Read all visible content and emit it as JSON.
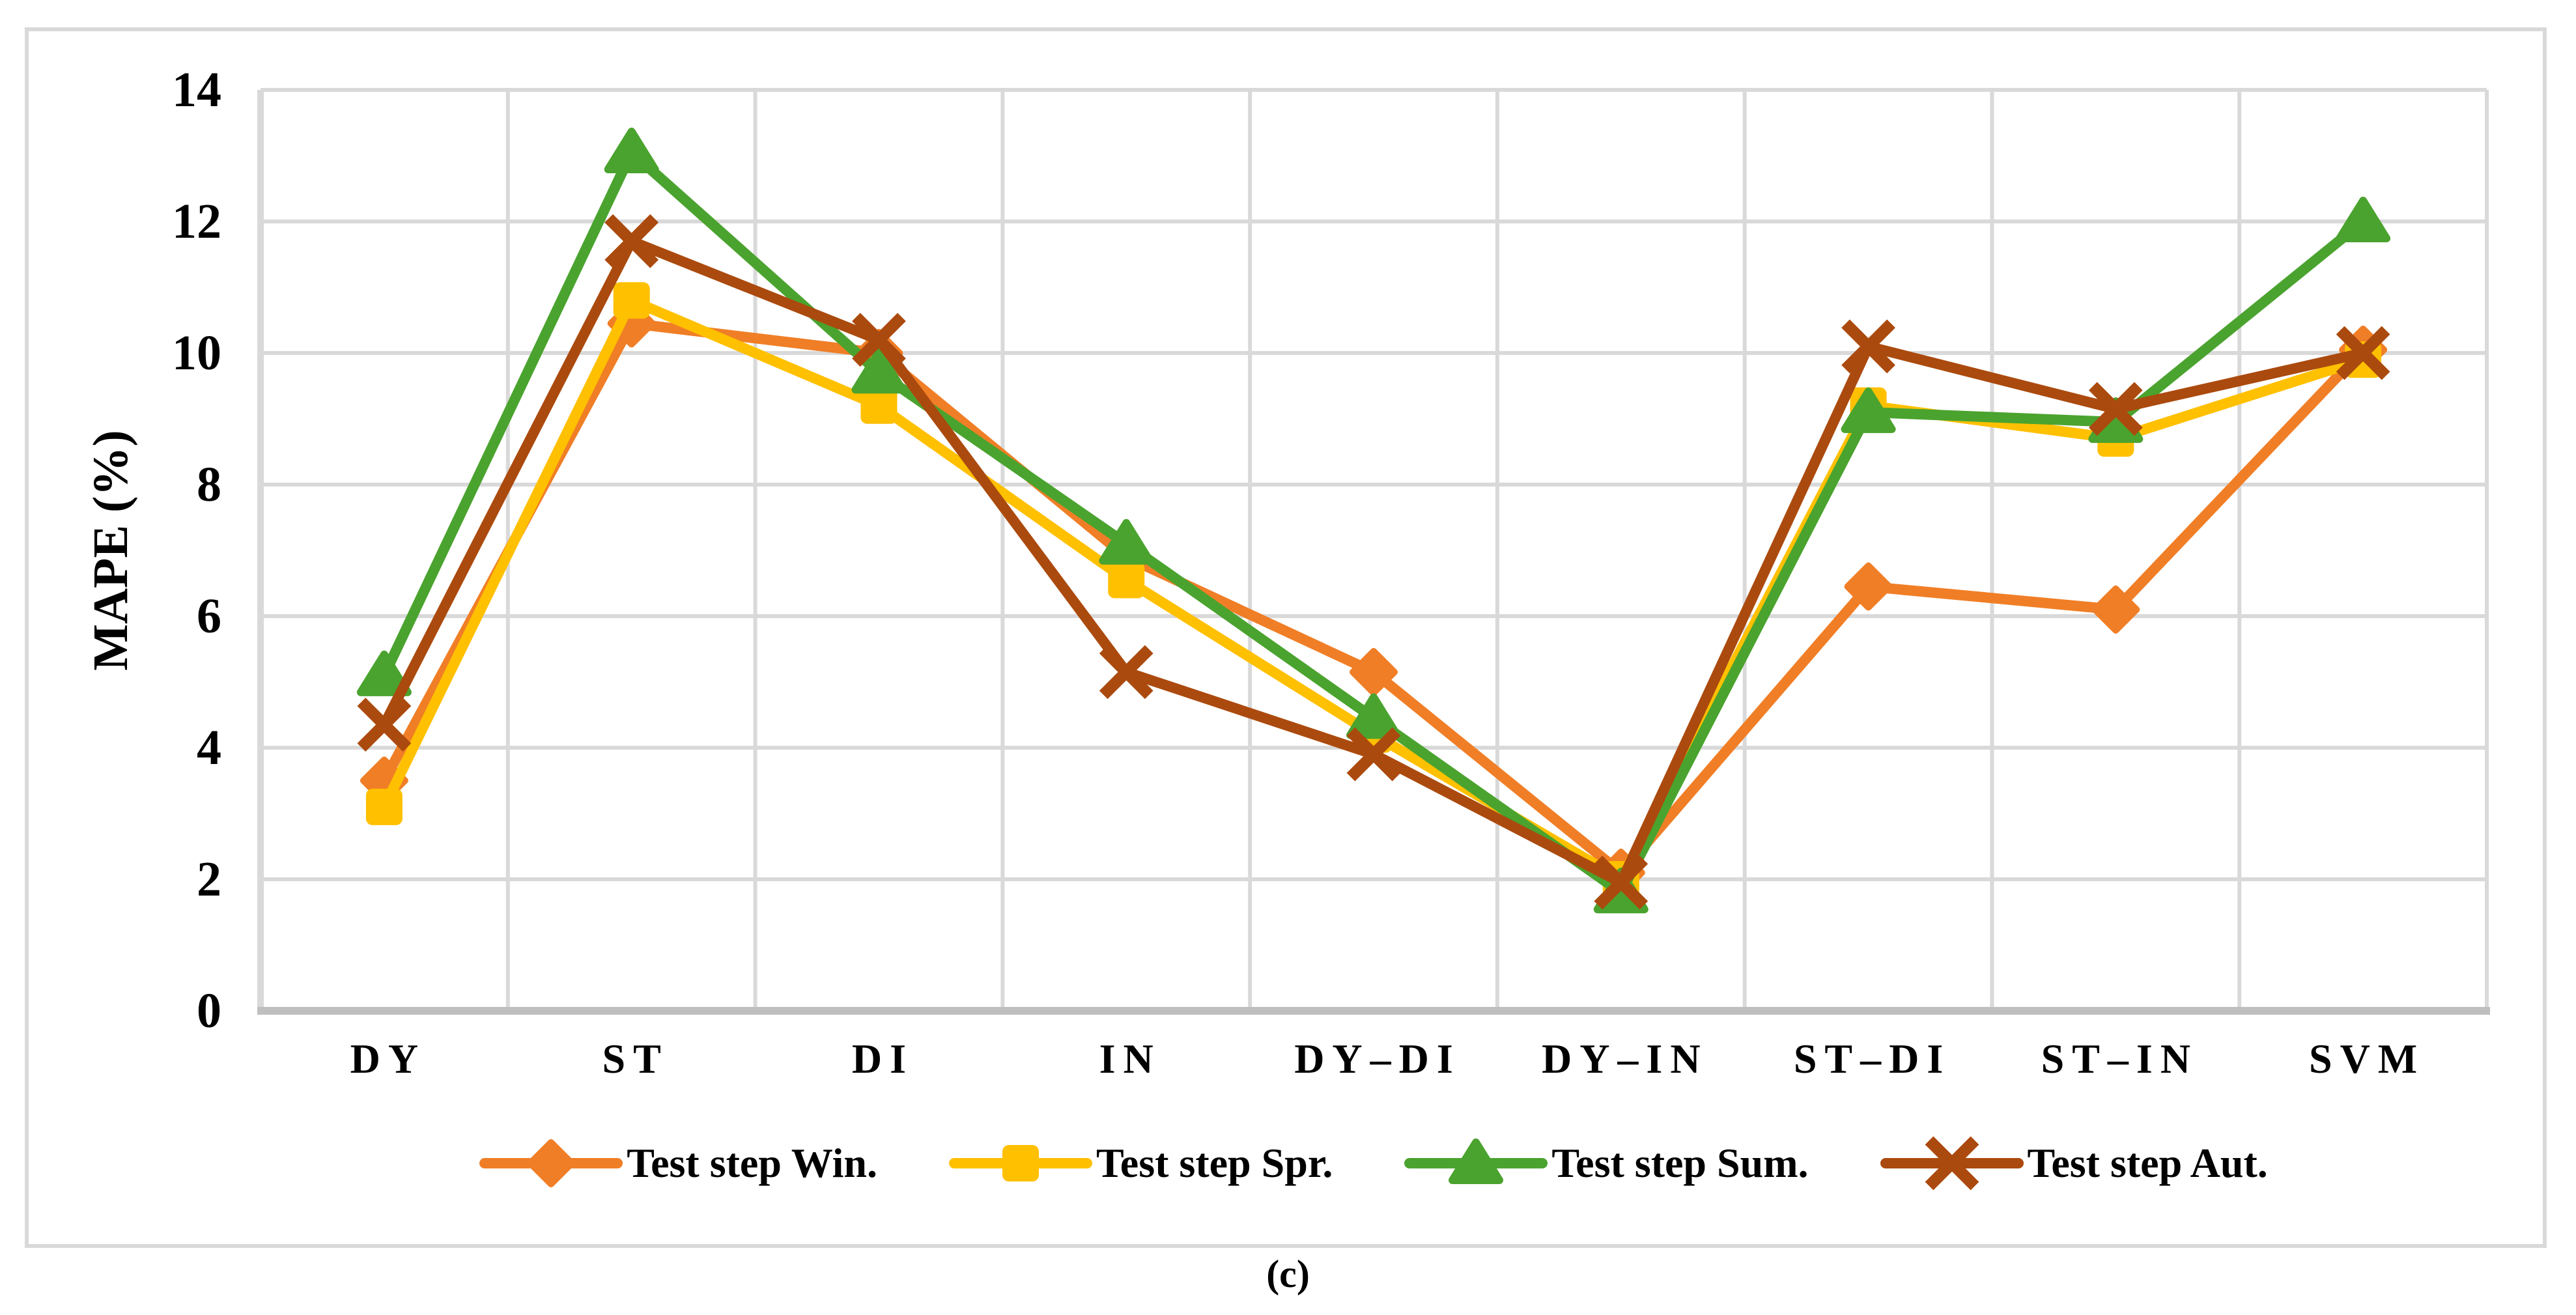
{
  "figure": {
    "caption": "(c)"
  },
  "colors": {
    "gridline": "#D9D9D9",
    "axis_line": "#BFBFBF",
    "text": "#000000",
    "background": "#FFFFFF"
  },
  "chart_data": {
    "type": "line",
    "title": "",
    "xlabel": "",
    "ylabel": "MAPE (%)",
    "ylim": [
      0,
      14
    ],
    "yticks": [
      0,
      2,
      4,
      6,
      8,
      10,
      12,
      14
    ],
    "grid": true,
    "legend_position": "bottom",
    "categories": [
      "DY",
      "ST",
      "DI",
      "IN",
      "DY–DI",
      "DY–IN",
      "ST–DI",
      "ST–IN",
      "SVM"
    ],
    "series": [
      {
        "name": "Test step Win.",
        "marker": "diamond",
        "color": "#F07E26",
        "values": [
          3.5,
          10.45,
          10.0,
          6.9,
          5.15,
          2.1,
          6.45,
          6.1,
          10.05
        ]
      },
      {
        "name": "Test step Spr.",
        "marker": "square",
        "color": "#FFC000",
        "values": [
          3.1,
          10.8,
          9.2,
          6.55,
          4.2,
          2.0,
          9.2,
          8.7,
          9.9
        ]
      },
      {
        "name": "Test step Sum.",
        "marker": "triangle",
        "color": "#4AA32E",
        "values": [
          5.1,
          13.05,
          9.7,
          7.1,
          4.45,
          1.8,
          9.1,
          8.95,
          12.0
        ]
      },
      {
        "name": "Test step Aut.",
        "marker": "x",
        "color": "#AB4A0E",
        "values": [
          4.35,
          11.7,
          10.2,
          5.15,
          3.9,
          1.95,
          10.1,
          9.15,
          10.0
        ]
      }
    ]
  }
}
